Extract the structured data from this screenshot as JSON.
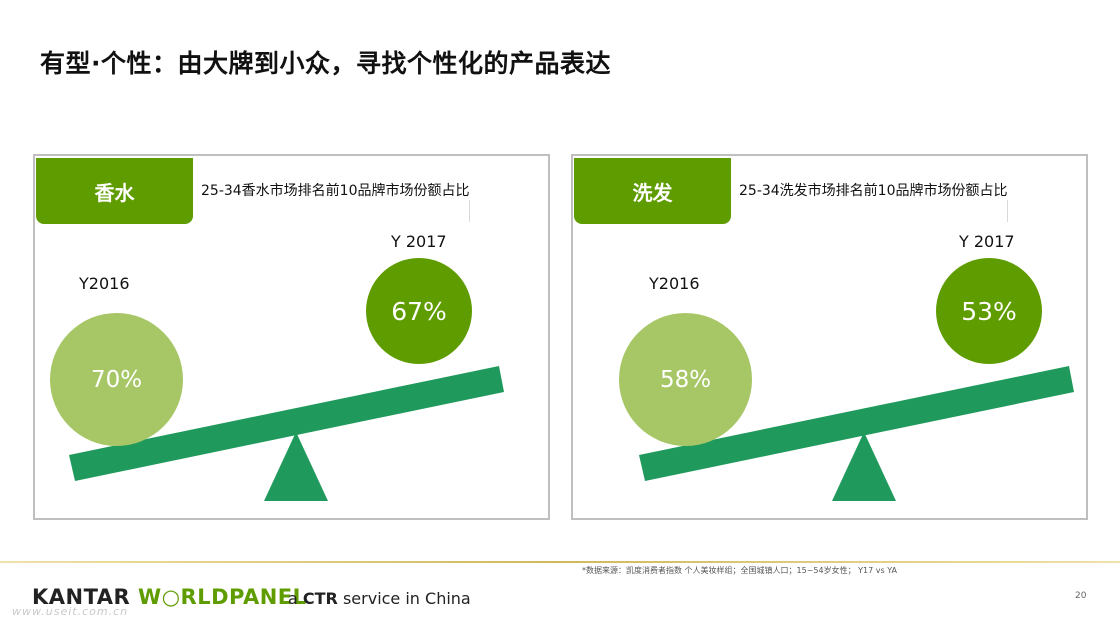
{
  "title": "有型·个性：由大牌到小众，寻找个性化的产品表达",
  "panels": [
    {
      "tag": "香水",
      "subtitle": "25-34香水市场排名前10品牌市场份额占比",
      "y2016_label": "Y2016",
      "y2017_label": "Y 2017",
      "y2016_value": "70%",
      "y2017_value": "67%"
    },
    {
      "tag": "洗发",
      "subtitle": "25-34洗发市场排名前10品牌市场份额占比",
      "y2016_label": "Y2016",
      "y2017_label": "Y 2017",
      "y2016_value": "58%",
      "y2017_value": "53%"
    }
  ],
  "footer": {
    "source": "*数据来源：凯度消费者指数 个人美妆样组；全国城镇人口；15~54岁女性； Y17 vs YA",
    "page_number": "20",
    "logo_kantar": "KANTAR",
    "logo_w": "W",
    "logo_orld": "RLDPANEL",
    "tagline_a": "a ",
    "tagline_ctr": "CTR",
    "tagline_rest": " service in China",
    "watermark": "www.useit.com.cn"
  },
  "colors": {
    "dark_green": "#5f9c00",
    "light_green": "#a7c766",
    "beam_green": "#1f9a5c",
    "border_gray": "#bfbfbf"
  }
}
